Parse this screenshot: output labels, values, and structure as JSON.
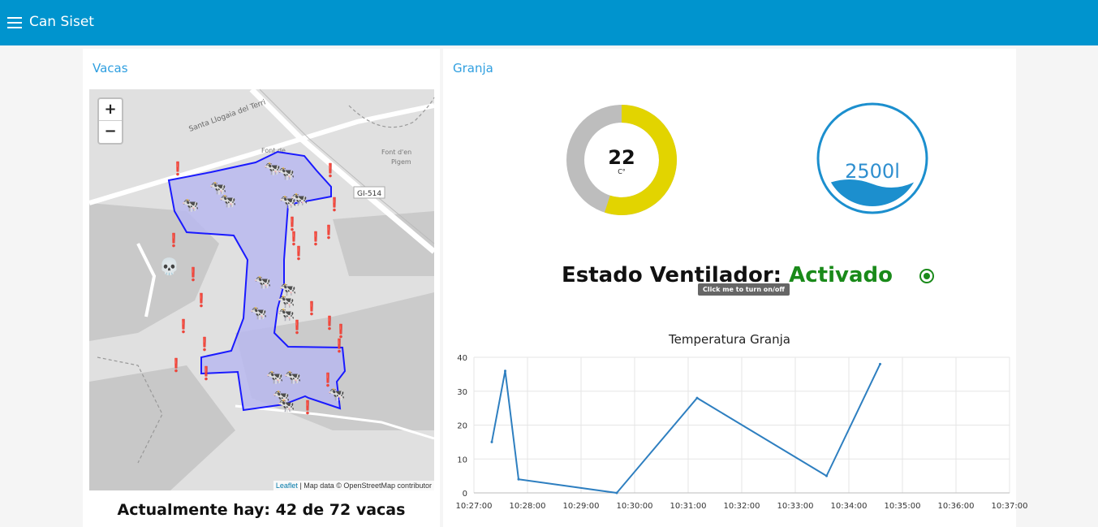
{
  "app": {
    "title": "Can Siset",
    "menu_icon": "hamburger-icon"
  },
  "vacas": {
    "title": "Vacas",
    "map": {
      "zoom_in": "+",
      "zoom_out": "−",
      "attribution_link": "Leaflet",
      "attribution_text": " | Map data © OpenStreetMap contributor",
      "labels": [
        "Santa Llogaia del Terri",
        "Font de",
        "Font d'en",
        "Pigem",
        "GI-514"
      ],
      "cow_icon": "🐄",
      "alert_icon": "❗",
      "skull_icon": "💀",
      "fence_color": "#1a1aff",
      "fence_fill": "#b8b8ef"
    },
    "count_text": "Actualmente hay: 42 de 72 vacas"
  },
  "granja": {
    "title": "Granja",
    "temperature": {
      "value": "22",
      "unit": "C°",
      "min": 0,
      "max": 40,
      "color": "#e2d400",
      "track": "#bdbdbd"
    },
    "water_tank": {
      "label": "2500l",
      "level": 0.25,
      "color": "#1c8fce"
    },
    "fan": {
      "label": "Estado Ventilador:",
      "value": "Activado",
      "tooltip": "Click me to turn on/off",
      "toggle_icon": "radio-on-icon",
      "color": "#1a8a1a"
    }
  },
  "chart_data": {
    "type": "line",
    "title": "Temperatura Granja",
    "xlabel": "",
    "ylabel": "",
    "x_ticks": [
      "10:27:00",
      "10:28:00",
      "10:29:00",
      "10:30:00",
      "10:31:00",
      "10:32:00",
      "10:33:00",
      "10:34:00",
      "10:35:00",
      "10:36:00",
      "10:37:00"
    ],
    "y_ticks": [
      "0",
      "10",
      "20",
      "30",
      "40"
    ],
    "ylim": [
      0,
      40
    ],
    "xlim": [
      "10:27:00",
      "10:37:00"
    ],
    "series": [
      {
        "color": "#2e7fc0",
        "points": [
          {
            "x": "10:27:20",
            "y": 15
          },
          {
            "x": "10:27:35",
            "y": 36
          },
          {
            "x": "10:27:50",
            "y": 4
          },
          {
            "x": "10:29:40",
            "y": 0
          },
          {
            "x": "10:31:10",
            "y": 28
          },
          {
            "x": "10:33:35",
            "y": 5
          },
          {
            "x": "10:34:35",
            "y": 38
          }
        ]
      }
    ],
    "grid": true
  }
}
